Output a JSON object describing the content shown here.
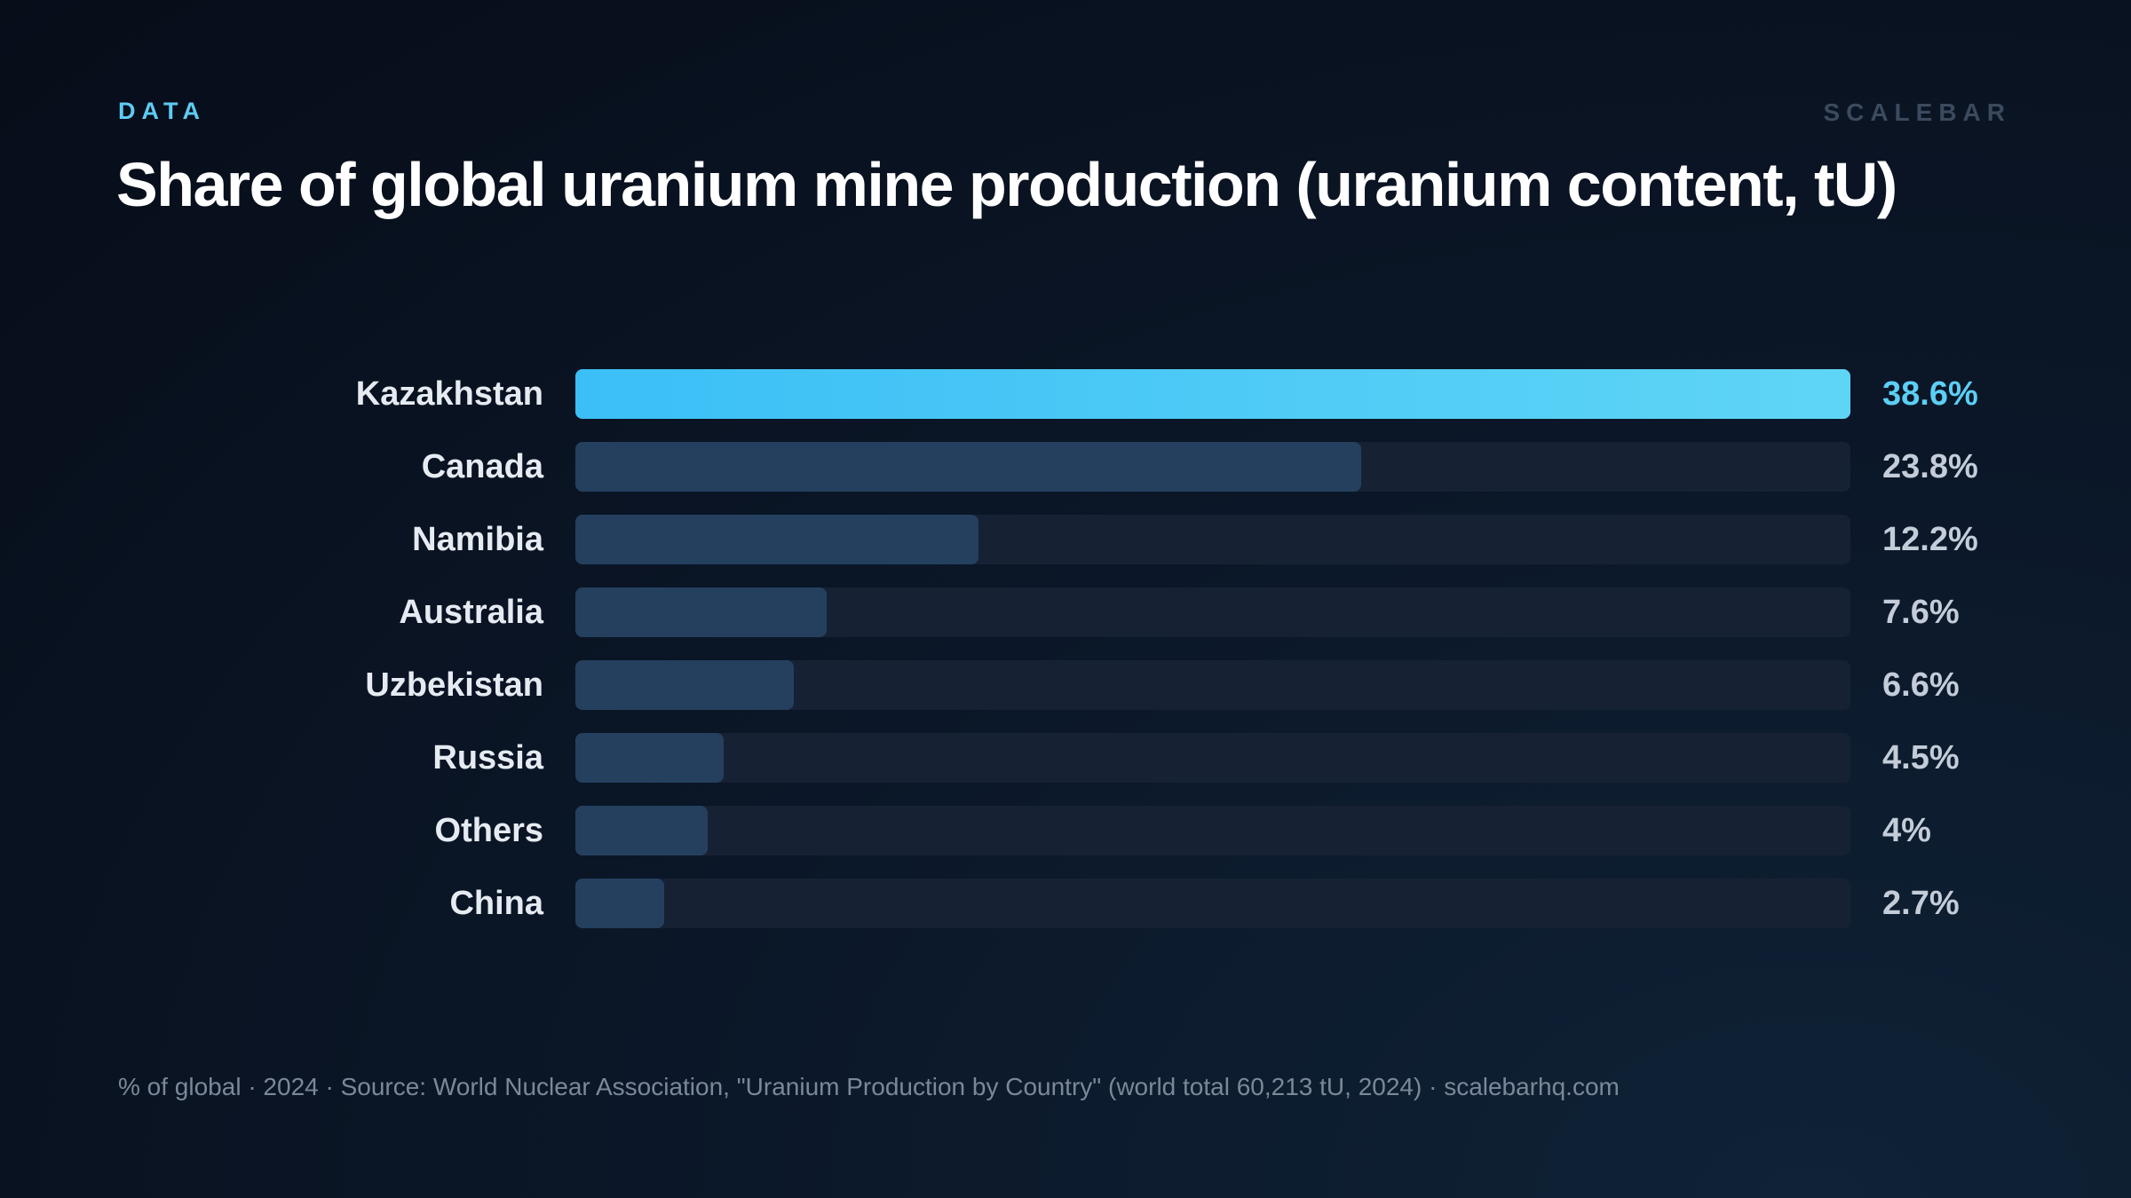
{
  "header": {
    "eyebrow": "DATA",
    "brand": "SCALEBAR"
  },
  "chart_data": {
    "type": "bar",
    "orientation": "horizontal",
    "title": "Share of global uranium mine production (uranium content, tU)",
    "categories": [
      "Kazakhstan",
      "Canada",
      "Namibia",
      "Australia",
      "Uzbekistan",
      "Russia",
      "Others",
      "China"
    ],
    "values": [
      38.6,
      23.8,
      12.2,
      7.6,
      6.6,
      4.5,
      4,
      2.7
    ],
    "value_labels": [
      "38.6%",
      "23.8%",
      "12.2%",
      "7.6%",
      "6.6%",
      "4.5%",
      "4%",
      "2.7%"
    ],
    "xlim": [
      0,
      38.6
    ],
    "grid": false,
    "legend": "none",
    "colors": {
      "highlight_start": "#3bbff6",
      "highlight_end": "#5fd5f6",
      "bar": "#25405f",
      "track": "#162234"
    }
  },
  "footer": {
    "note": "% of global · 2024 · Source: World Nuclear Association, \"Uranium Production by Country\" (world total 60,213 tU, 2024) · scalebarhq.com"
  }
}
